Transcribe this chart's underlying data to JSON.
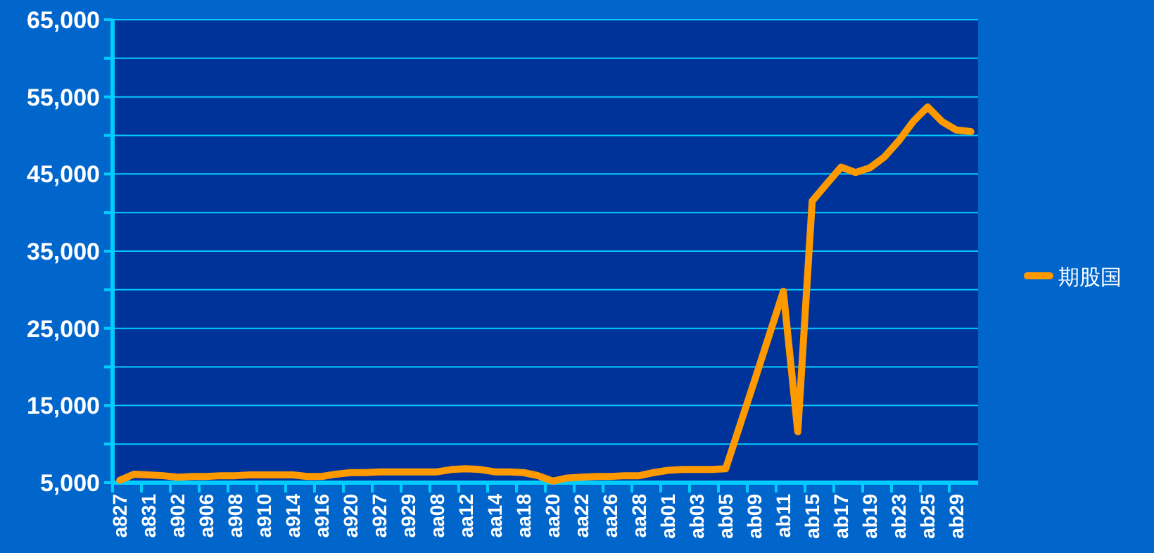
{
  "chart_data": {
    "type": "line",
    "categories": [
      "a827",
      null,
      "a831",
      null,
      "a902",
      null,
      "a906",
      null,
      "a908",
      null,
      "a910",
      null,
      "a914",
      null,
      "a916",
      null,
      "a920",
      null,
      "a927",
      null,
      "a929",
      null,
      "aa08",
      null,
      "aa12",
      null,
      "aa14",
      null,
      "aa18",
      null,
      "aa20",
      null,
      "aa22",
      null,
      "aa26",
      null,
      "aa28",
      null,
      "ab01",
      null,
      "ab03",
      null,
      "ab05",
      null,
      "ab09",
      null,
      "ab11",
      null,
      "ab15",
      null,
      "ab17",
      null,
      "ab19",
      null,
      "ab23",
      null,
      "ab25",
      null,
      "ab29",
      null
    ],
    "series": [
      {
        "name": "期股国",
        "color": "#ff9900",
        "values": [
          5300,
          6100,
          6000,
          5900,
          5700,
          5800,
          5800,
          5900,
          5900,
          6000,
          6000,
          6000,
          6000,
          5800,
          5800,
          6100,
          6300,
          6300,
          6400,
          6400,
          6400,
          6400,
          6400,
          6700,
          6800,
          6700,
          6400,
          6400,
          6300,
          5900,
          5200,
          5600,
          5700,
          5800,
          5800,
          5900,
          5900,
          6300,
          6600,
          6700,
          6700,
          6700,
          6800,
          12500,
          18200,
          24000,
          29800,
          11600,
          41500,
          43700,
          45900,
          45200,
          45800,
          47200,
          49300,
          51800,
          53700,
          51800,
          50700,
          50500
        ]
      }
    ],
    "ylim": [
      5000,
      65000
    ],
    "yticks": [
      {
        "value": 5000,
        "label": "5,000"
      },
      {
        "value": 10000,
        "label": null
      },
      {
        "value": 15000,
        "label": "15,000"
      },
      {
        "value": 20000,
        "label": null
      },
      {
        "value": 25000,
        "label": "25,000"
      },
      {
        "value": 30000,
        "label": null
      },
      {
        "value": 35000,
        "label": "35,000"
      },
      {
        "value": 40000,
        "label": null
      },
      {
        "value": 45000,
        "label": "45,000"
      },
      {
        "value": 50000,
        "label": null
      },
      {
        "value": 55000,
        "label": "55,000"
      },
      {
        "value": 60000,
        "label": null
      },
      {
        "value": 65000,
        "label": "65,000"
      }
    ],
    "grid": "y",
    "legend": "right"
  }
}
